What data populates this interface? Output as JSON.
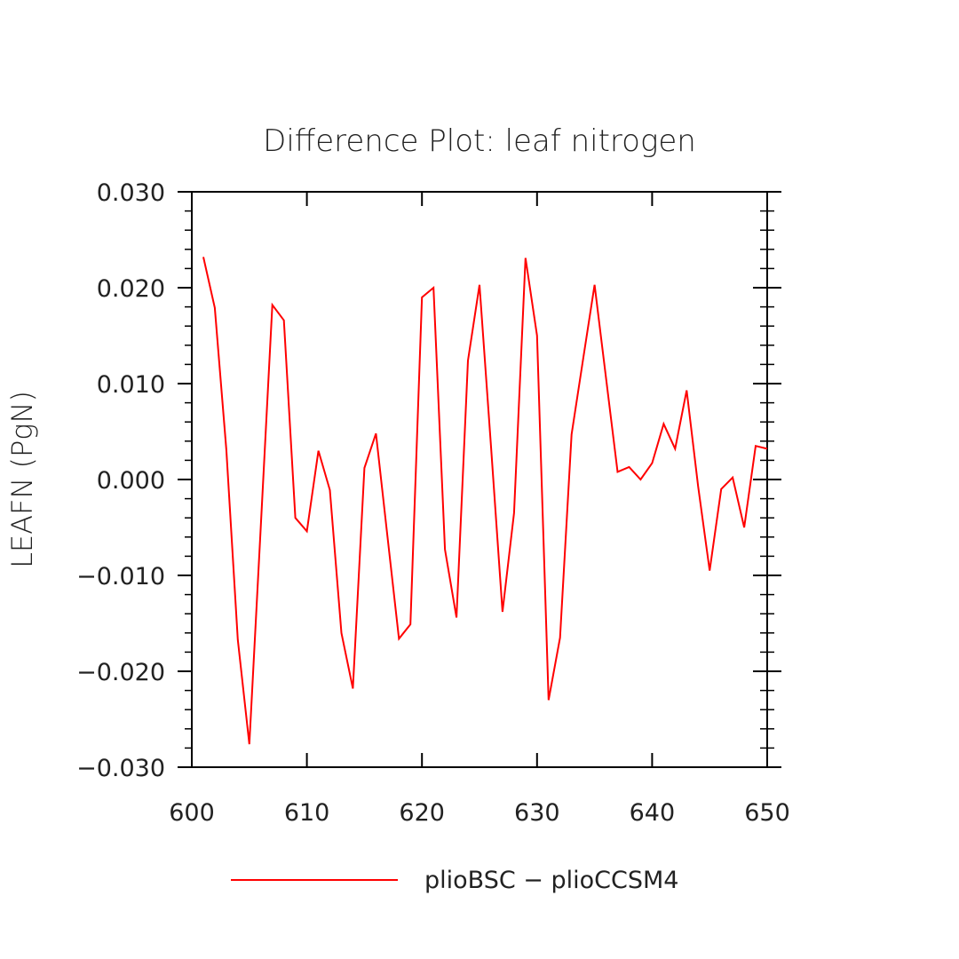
{
  "chart_data": {
    "type": "line",
    "title": "Difference Plot: leaf nitrogen",
    "xlabel": "",
    "ylabel": "LEAFN   (PgN)",
    "xlim": [
      600,
      650
    ],
    "ylim": [
      -0.03,
      0.03
    ],
    "x_ticks": [
      600,
      610,
      620,
      630,
      640,
      650
    ],
    "x_tick_labels": [
      "600",
      "610",
      "620",
      "630",
      "640",
      "650"
    ],
    "y_ticks": [
      -0.03,
      -0.02,
      -0.01,
      0.0,
      0.01,
      0.02,
      0.03
    ],
    "y_tick_labels": [
      "−0.030",
      "−0.020",
      "−0.010",
      "0.000",
      "0.010",
      "0.020",
      "0.030"
    ],
    "grid": false,
    "legend_position": "bottom",
    "series": [
      {
        "name": "plioBSC − plioCCSM4",
        "color": "#ff0000",
        "x": [
          601,
          602,
          603,
          604,
          605,
          606,
          607,
          608,
          609,
          610,
          611,
          612,
          613,
          614,
          615,
          616,
          617,
          618,
          619,
          620,
          621,
          622,
          623,
          624,
          625,
          626,
          627,
          628,
          629,
          630,
          631,
          632,
          633,
          634,
          635,
          636,
          637,
          638,
          639,
          640,
          641,
          642,
          643,
          644,
          645,
          646,
          647,
          648,
          649,
          650
        ],
        "y": [
          0.0232,
          0.0179,
          0.0031,
          -0.0167,
          -0.0276,
          -0.0047,
          0.0182,
          0.0166,
          -0.004,
          -0.0054,
          0.003,
          -0.0011,
          -0.016,
          -0.0218,
          0.0012,
          0.0048,
          -0.0059,
          -0.0166,
          -0.0151,
          0.019,
          0.02,
          -0.0073,
          -0.0144,
          0.0124,
          0.0203,
          0.0034,
          -0.0138,
          -0.0035,
          0.0231,
          0.015,
          -0.023,
          -0.0165,
          0.0047,
          0.0125,
          0.0203,
          0.0105,
          0.0008,
          0.0013,
          0.0,
          0.0017,
          0.0058,
          0.0032,
          0.0093,
          -0.0007,
          -0.0095,
          -0.001,
          0.0002,
          -0.005,
          0.0035,
          0.0032
        ]
      }
    ]
  }
}
